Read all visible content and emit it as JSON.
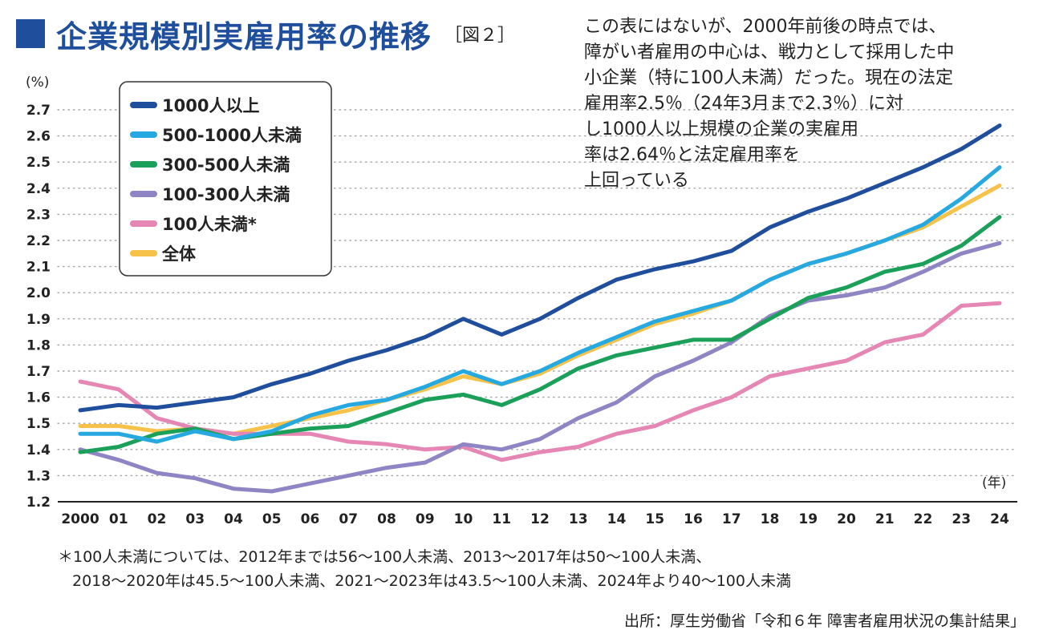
{
  "title": "企業規模別実雇用率の推移",
  "figure_label": "［図２］",
  "callout": [
    "この表にはないが、2000年前後の時点では、",
    "障がい者雇用の中心は、戦力として採用した中",
    "小企業（特に100人未満）だった。現在の法定",
    "雇用率2.5％（24年3月まで2.3％）に対",
    "し1000人以上規模の企業の実雇用",
    "率は2.64％と法定雇用率を",
    "上回っている"
  ],
  "footnote": [
    "＊100人未満については、2012年までは56〜100人未満、2013〜2017年は50〜100人未満、",
    "2018〜2020年は45.5〜100人未満、2021〜2023年は43.5〜100人未満、2024年より40〜100人未満"
  ],
  "source": "出所：厚生労働省「令和６年 障害者雇用状況の集計結果」",
  "chart_data": {
    "type": "line",
    "title": "企業規模別実雇用率の推移",
    "ylabel": "(%)",
    "xlabel": "(年)",
    "ylim": [
      1.2,
      2.7
    ],
    "yticks": [
      "1.2",
      "1.3",
      "1.4",
      "1.5",
      "1.6",
      "1.7",
      "1.8",
      "1.9",
      "2.0",
      "2.1",
      "2.2",
      "2.3",
      "2.4",
      "2.5",
      "2.6",
      "2.7"
    ],
    "categories": [
      "2000",
      "01",
      "02",
      "03",
      "04",
      "05",
      "06",
      "07",
      "08",
      "09",
      "10",
      "11",
      "12",
      "13",
      "14",
      "15",
      "16",
      "17",
      "18",
      "19",
      "20",
      "21",
      "22",
      "23",
      "24"
    ],
    "grid": true,
    "legend_position": "top-left",
    "series": [
      {
        "name": "1000人以上",
        "color": "#1f4e9c",
        "values": [
          1.55,
          1.57,
          1.56,
          1.58,
          1.6,
          1.65,
          1.69,
          1.74,
          1.78,
          1.83,
          1.9,
          1.84,
          1.9,
          1.98,
          2.05,
          2.09,
          2.12,
          2.16,
          2.25,
          2.31,
          2.36,
          2.42,
          2.48,
          2.55,
          2.64
        ]
      },
      {
        "name": "500-1000人未満",
        "color": "#26a9e0",
        "values": [
          1.46,
          1.46,
          1.43,
          1.47,
          1.44,
          1.47,
          1.53,
          1.57,
          1.59,
          1.64,
          1.7,
          1.65,
          1.7,
          1.77,
          1.83,
          1.89,
          1.93,
          1.97,
          2.05,
          2.11,
          2.15,
          2.2,
          2.26,
          2.36,
          2.48
        ]
      },
      {
        "name": "300-500人未満",
        "color": "#1ba05a",
        "values": [
          1.39,
          1.41,
          1.46,
          1.48,
          1.44,
          1.46,
          1.48,
          1.49,
          1.54,
          1.59,
          1.61,
          1.57,
          1.63,
          1.71,
          1.76,
          1.79,
          1.82,
          1.82,
          1.9,
          1.98,
          2.02,
          2.08,
          2.11,
          2.18,
          2.29
        ]
      },
      {
        "name": "100-300人未満",
        "color": "#8f85c4",
        "values": [
          1.4,
          1.36,
          1.31,
          1.29,
          1.25,
          1.24,
          1.27,
          1.3,
          1.33,
          1.35,
          1.42,
          1.4,
          1.44,
          1.52,
          1.58,
          1.68,
          1.74,
          1.81,
          1.91,
          1.97,
          1.99,
          2.02,
          2.08,
          2.15,
          2.19
        ]
      },
      {
        "name": "100人未満*",
        "color": "#e586b4",
        "values": [
          1.66,
          1.63,
          1.52,
          1.48,
          1.46,
          1.46,
          1.46,
          1.43,
          1.42,
          1.4,
          1.41,
          1.36,
          1.39,
          1.41,
          1.46,
          1.49,
          1.55,
          1.6,
          1.68,
          1.71,
          1.74,
          1.81,
          1.84,
          1.95,
          1.96
        ]
      },
      {
        "name": "全体",
        "color": "#f7c24a",
        "values": [
          1.49,
          1.49,
          1.47,
          1.48,
          1.46,
          1.49,
          1.52,
          1.55,
          1.59,
          1.63,
          1.68,
          1.65,
          1.69,
          1.76,
          1.82,
          1.88,
          1.92,
          1.97,
          2.05,
          2.11,
          2.15,
          2.2,
          2.25,
          2.33,
          2.41
        ]
      }
    ]
  }
}
